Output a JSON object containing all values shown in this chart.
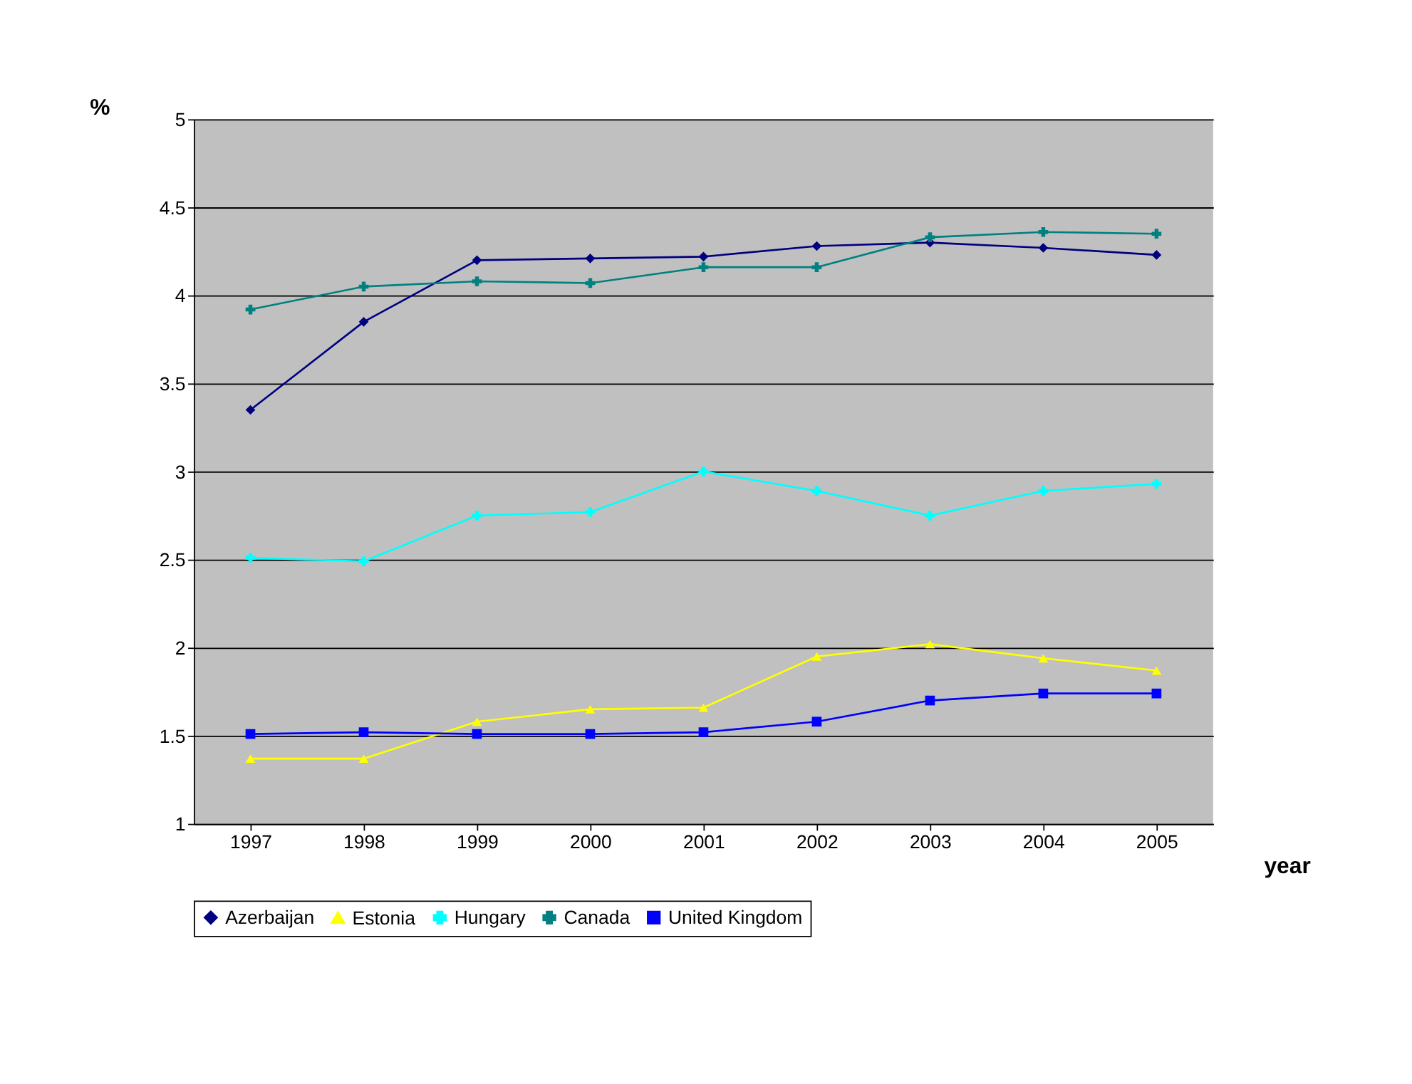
{
  "chart_data": {
    "type": "line",
    "xlabel": "year",
    "ylabel": "%",
    "categories": [
      "1997",
      "1998",
      "1999",
      "2000",
      "2001",
      "2002",
      "2003",
      "2004",
      "2005"
    ],
    "series": [
      {
        "name": "Azerbaijan",
        "color": "#000080",
        "marker": "diamond",
        "values": [
          3.35,
          3.85,
          4.2,
          4.21,
          4.22,
          4.28,
          4.3,
          4.27,
          4.23
        ]
      },
      {
        "name": "Estonia",
        "color": "#ffff00",
        "marker": "triangle",
        "values": [
          1.37,
          1.37,
          1.58,
          1.65,
          1.66,
          1.95,
          2.02,
          1.94,
          1.87
        ]
      },
      {
        "name": "Hungary",
        "color": "#00ffff",
        "marker": "cross",
        "values": [
          2.51,
          2.49,
          2.75,
          2.77,
          3.0,
          2.89,
          2.75,
          2.89,
          2.93
        ]
      },
      {
        "name": "Canada",
        "color": "#008080",
        "marker": "cross",
        "values": [
          3.92,
          4.05,
          4.08,
          4.07,
          4.16,
          4.16,
          4.33,
          4.36,
          4.35
        ]
      },
      {
        "name": "United Kingdom",
        "color": "#0000ff",
        "marker": "square",
        "values": [
          1.51,
          1.52,
          1.51,
          1.51,
          1.52,
          1.58,
          1.7,
          1.74,
          1.74
        ]
      }
    ],
    "ylim": [
      1,
      5
    ],
    "yticks": [
      1,
      1.5,
      2,
      2.5,
      3,
      3.5,
      4,
      4.5,
      5
    ],
    "grid": "y",
    "legend": "bottom",
    "line_style": "solid"
  }
}
